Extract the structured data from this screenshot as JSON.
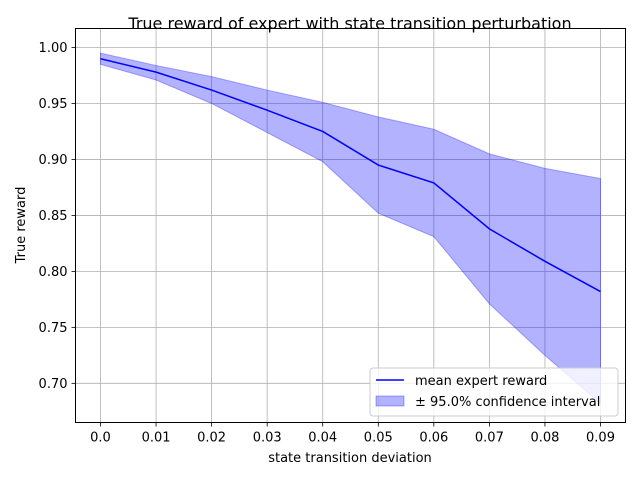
{
  "chart_data": {
    "type": "line",
    "title": "True reward of expert with state transition perturbation",
    "xlabel": "state transition deviation",
    "ylabel": "True reward",
    "x": [
      0.0,
      0.01,
      0.02,
      0.03,
      0.04,
      0.05,
      0.06,
      0.07,
      0.08,
      0.09
    ],
    "x_tick_labels": [
      "0.0",
      "0.01",
      "0.02",
      "0.03",
      "0.04",
      "0.05",
      "0.06",
      "0.07",
      "0.08",
      "0.09"
    ],
    "y_ticks": [
      0.7,
      0.75,
      0.8,
      0.85,
      0.9,
      0.95,
      1.0
    ],
    "y_tick_labels": [
      "0.70",
      "0.75",
      "0.80",
      "0.85",
      "0.90",
      "0.95",
      "1.00"
    ],
    "xlim": [
      -0.0045,
      0.0945
    ],
    "ylim": [
      0.665,
      1.017
    ],
    "grid": true,
    "legend_position": "lower-right",
    "series": [
      {
        "name": "mean expert reward",
        "color": "#0000ff",
        "values": [
          0.99,
          0.978,
          0.962,
          0.944,
          0.925,
          0.895,
          0.879,
          0.838,
          0.809,
          0.782
        ]
      }
    ],
    "band": {
      "name": "± 95.0% confidence interval",
      "color": "#0000ff",
      "lower": [
        0.985,
        0.971,
        0.95,
        0.924,
        0.898,
        0.852,
        0.831,
        0.771,
        0.725,
        0.682
      ],
      "upper": [
        0.995,
        0.984,
        0.974,
        0.962,
        0.951,
        0.938,
        0.927,
        0.905,
        0.892,
        0.883
      ]
    }
  }
}
